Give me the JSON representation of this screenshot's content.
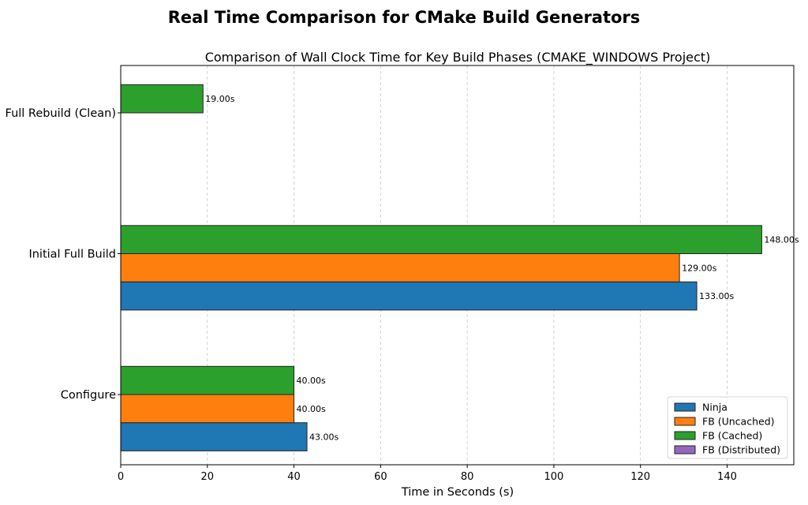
{
  "chart_data": {
    "type": "bar",
    "orientation": "horizontal",
    "suptitle": "Real Time Comparison for CMake Build Generators",
    "title": "Comparison of Wall Clock Time for Key Build Phases (CMAKE_WINDOWS Project)",
    "xlabel": "Time in Seconds (s)",
    "ylabel": "",
    "xlim": [
      0,
      155.4
    ],
    "xticks": [
      0,
      20,
      40,
      60,
      80,
      100,
      120,
      140
    ],
    "grid": "x-dashed",
    "categories": [
      "Configure",
      "Initial Full Build",
      "Full Rebuild (Clean)"
    ],
    "series": [
      {
        "name": "Ninja",
        "color": "#1f77b4",
        "values": [
          43,
          133,
          null
        ]
      },
      {
        "name": "FB (Uncached)",
        "color": "#ff7f0e",
        "values": [
          40,
          129,
          null
        ]
      },
      {
        "name": "FB (Cached)",
        "color": "#2ca02c",
        "values": [
          40,
          148,
          19
        ]
      },
      {
        "name": "FB (Distributed)",
        "color": "#9467bd",
        "values": [
          null,
          null,
          null
        ]
      }
    ],
    "value_label_format": "{v}.00s",
    "legend_position": "lower-right"
  }
}
